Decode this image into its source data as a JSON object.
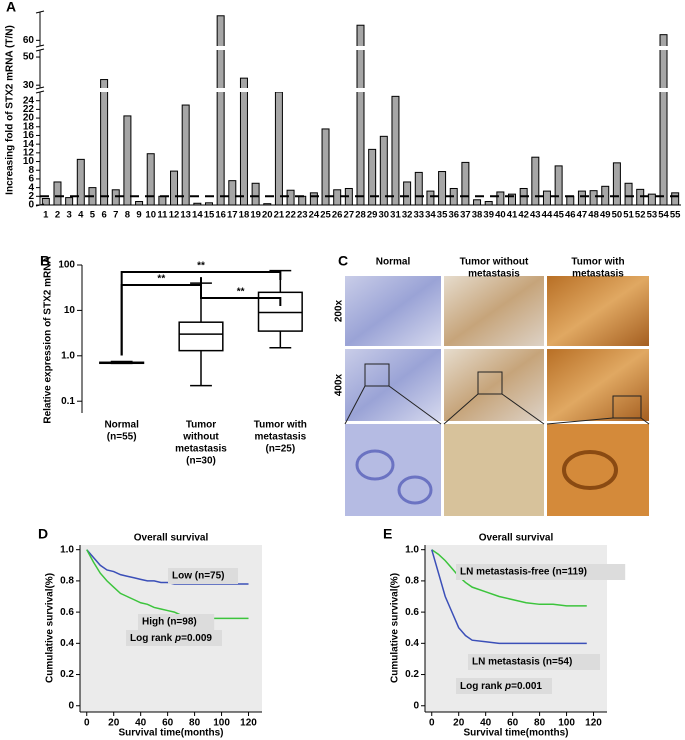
{
  "chart_data": [
    {
      "type": "bar",
      "label": "A",
      "y_label": "Increasing fold of STX2 mRNA (T/N)",
      "color": "#a6a6a6",
      "categories": [
        "1",
        "2",
        "3",
        "4",
        "5",
        "6",
        "7",
        "8",
        "9",
        "10",
        "11",
        "12",
        "13",
        "14",
        "15",
        "16",
        "17",
        "18",
        "19",
        "20",
        "21",
        "22",
        "23",
        "24",
        "25",
        "26",
        "27",
        "28",
        "29",
        "30",
        "31",
        "32",
        "33",
        "34",
        "35",
        "36",
        "37",
        "38",
        "39",
        "40",
        "41",
        "42",
        "43",
        "44",
        "45",
        "46",
        "47",
        "48",
        "49",
        "50",
        "51",
        "52",
        "53",
        "54",
        "55"
      ],
      "values": [
        1.5,
        5.3,
        1.7,
        10.5,
        4,
        34,
        3.5,
        20.5,
        0.8,
        11.8,
        2,
        7.8,
        23,
        0.4,
        0.5,
        73,
        5.6,
        35,
        5,
        0.3,
        26,
        3.4,
        2,
        2.8,
        17.5,
        3.5,
        3.8,
        68,
        12.8,
        15.8,
        25,
        5.3,
        7.5,
        3.2,
        7.7,
        3.8,
        9.8,
        1.2,
        0.8,
        3,
        2.5,
        3.8,
        11,
        3.2,
        9,
        2,
        3.2,
        3.3,
        4.3,
        9.7,
        5,
        3.6,
        2.5,
        63,
        2.8
      ],
      "ylim": [
        0,
        75
      ],
      "yaxis_segments": [
        [
          0,
          26
        ],
        [
          28,
          55
        ],
        [
          57,
          75
        ]
      ],
      "yticks": [
        0,
        2,
        4,
        6,
        8,
        10,
        12,
        14,
        16,
        18,
        20,
        22,
        24,
        30,
        50,
        60
      ],
      "reference_line": 2
    },
    {
      "type": "box",
      "label": "B",
      "y_label": "Relative expression of STX2 mRNA",
      "log_scale": true,
      "categories": [
        [
          "Normal",
          "(n=55)"
        ],
        [
          "Tumor",
          "without",
          "metastasis",
          "(n=30)"
        ],
        [
          "Tumor with",
          "metastasis",
          "(n=25)"
        ]
      ],
      "values": [
        [
          0.68,
          0.7,
          0.7,
          0.72,
          0.75
        ],
        [
          0.22,
          1.3,
          3,
          5.5,
          40
        ],
        [
          1.5,
          3.5,
          9,
          25,
          75
        ]
      ],
      "ylim": [
        0.055,
        100
      ],
      "yticks": [
        0.1,
        {
          "value": 1,
          "label": "1.0"
        },
        10,
        100
      ],
      "annotations": [
        "**",
        "**",
        "**"
      ]
    },
    {
      "type": "km",
      "label": "D",
      "title": "Overall survival",
      "x_label": "Survival time(months)",
      "y_label": "Cumulative survival(%)",
      "xlim": [
        -5,
        130
      ],
      "xticks": [
        0,
        20,
        40,
        60,
        80,
        100,
        120
      ],
      "ylim": [
        -0.04,
        1.03
      ],
      "yticks": [
        0,
        0.2,
        0.4,
        0.6,
        0.8,
        {
          "value": 1,
          "label": "1.0"
        }
      ],
      "series": [
        {
          "name": "Low (n=75)",
          "color": "#3b4fb8",
          "x": [
            0,
            5,
            10,
            15,
            20,
            25,
            30,
            35,
            40,
            45,
            50,
            55,
            60,
            65,
            70,
            120
          ],
          "values": [
            1,
            0.95,
            0.9,
            0.87,
            0.86,
            0.84,
            0.83,
            0.82,
            0.81,
            0.8,
            0.8,
            0.79,
            0.79,
            0.78,
            0.78,
            0.78
          ]
        },
        {
          "name": "High (n=98)",
          "color": "#3cc43c",
          "x": [
            0,
            5,
            10,
            15,
            20,
            25,
            30,
            35,
            40,
            45,
            50,
            55,
            60,
            65,
            70,
            75,
            80,
            120
          ],
          "values": [
            1,
            0.92,
            0.85,
            0.8,
            0.76,
            0.72,
            0.7,
            0.68,
            0.66,
            0.65,
            0.63,
            0.62,
            0.61,
            0.6,
            0.58,
            0.57,
            0.56,
            0.56
          ]
        }
      ],
      "annotation": [
        "Log rank ",
        "p",
        "=0.009"
      ]
    },
    {
      "type": "km",
      "label": "E",
      "title": "Overall survival",
      "x_label": "Survival time(months)",
      "y_label": "Cumulative survival(%)",
      "xlim": [
        -5,
        130
      ],
      "xticks": [
        0,
        20,
        40,
        60,
        80,
        100,
        120
      ],
      "ylim": [
        -0.04,
        1.03
      ],
      "yticks": [
        0,
        0.2,
        0.4,
        0.6,
        0.8,
        {
          "value": 1,
          "label": "1.0"
        }
      ],
      "series": [
        {
          "name": "LN metastasis-free (n=119)",
          "color": "#3cc43c",
          "x": [
            0,
            5,
            10,
            15,
            20,
            25,
            30,
            40,
            50,
            60,
            70,
            80,
            90,
            100,
            115
          ],
          "values": [
            1,
            0.97,
            0.93,
            0.88,
            0.83,
            0.79,
            0.76,
            0.73,
            0.7,
            0.68,
            0.66,
            0.65,
            0.65,
            0.64,
            0.64
          ]
        },
        {
          "name": "LN metastasis (n=54)",
          "color": "#3b4fb8",
          "x": [
            0,
            5,
            10,
            15,
            20,
            25,
            30,
            40,
            50,
            60,
            80,
            115
          ],
          "values": [
            1,
            0.85,
            0.7,
            0.6,
            0.5,
            0.45,
            0.42,
            0.41,
            0.4,
            0.4,
            0.4,
            0.4
          ]
        }
      ],
      "annotation": [
        "Log rank ",
        "p",
        "=0.001"
      ]
    }
  ],
  "figure_c": {
    "label": "C",
    "columns": [
      [
        "Normal"
      ],
      [
        "Tumor without",
        "metastasis"
      ],
      [
        "Tumor with",
        "metastasis"
      ]
    ],
    "rows": [
      "200x",
      "400x"
    ]
  }
}
